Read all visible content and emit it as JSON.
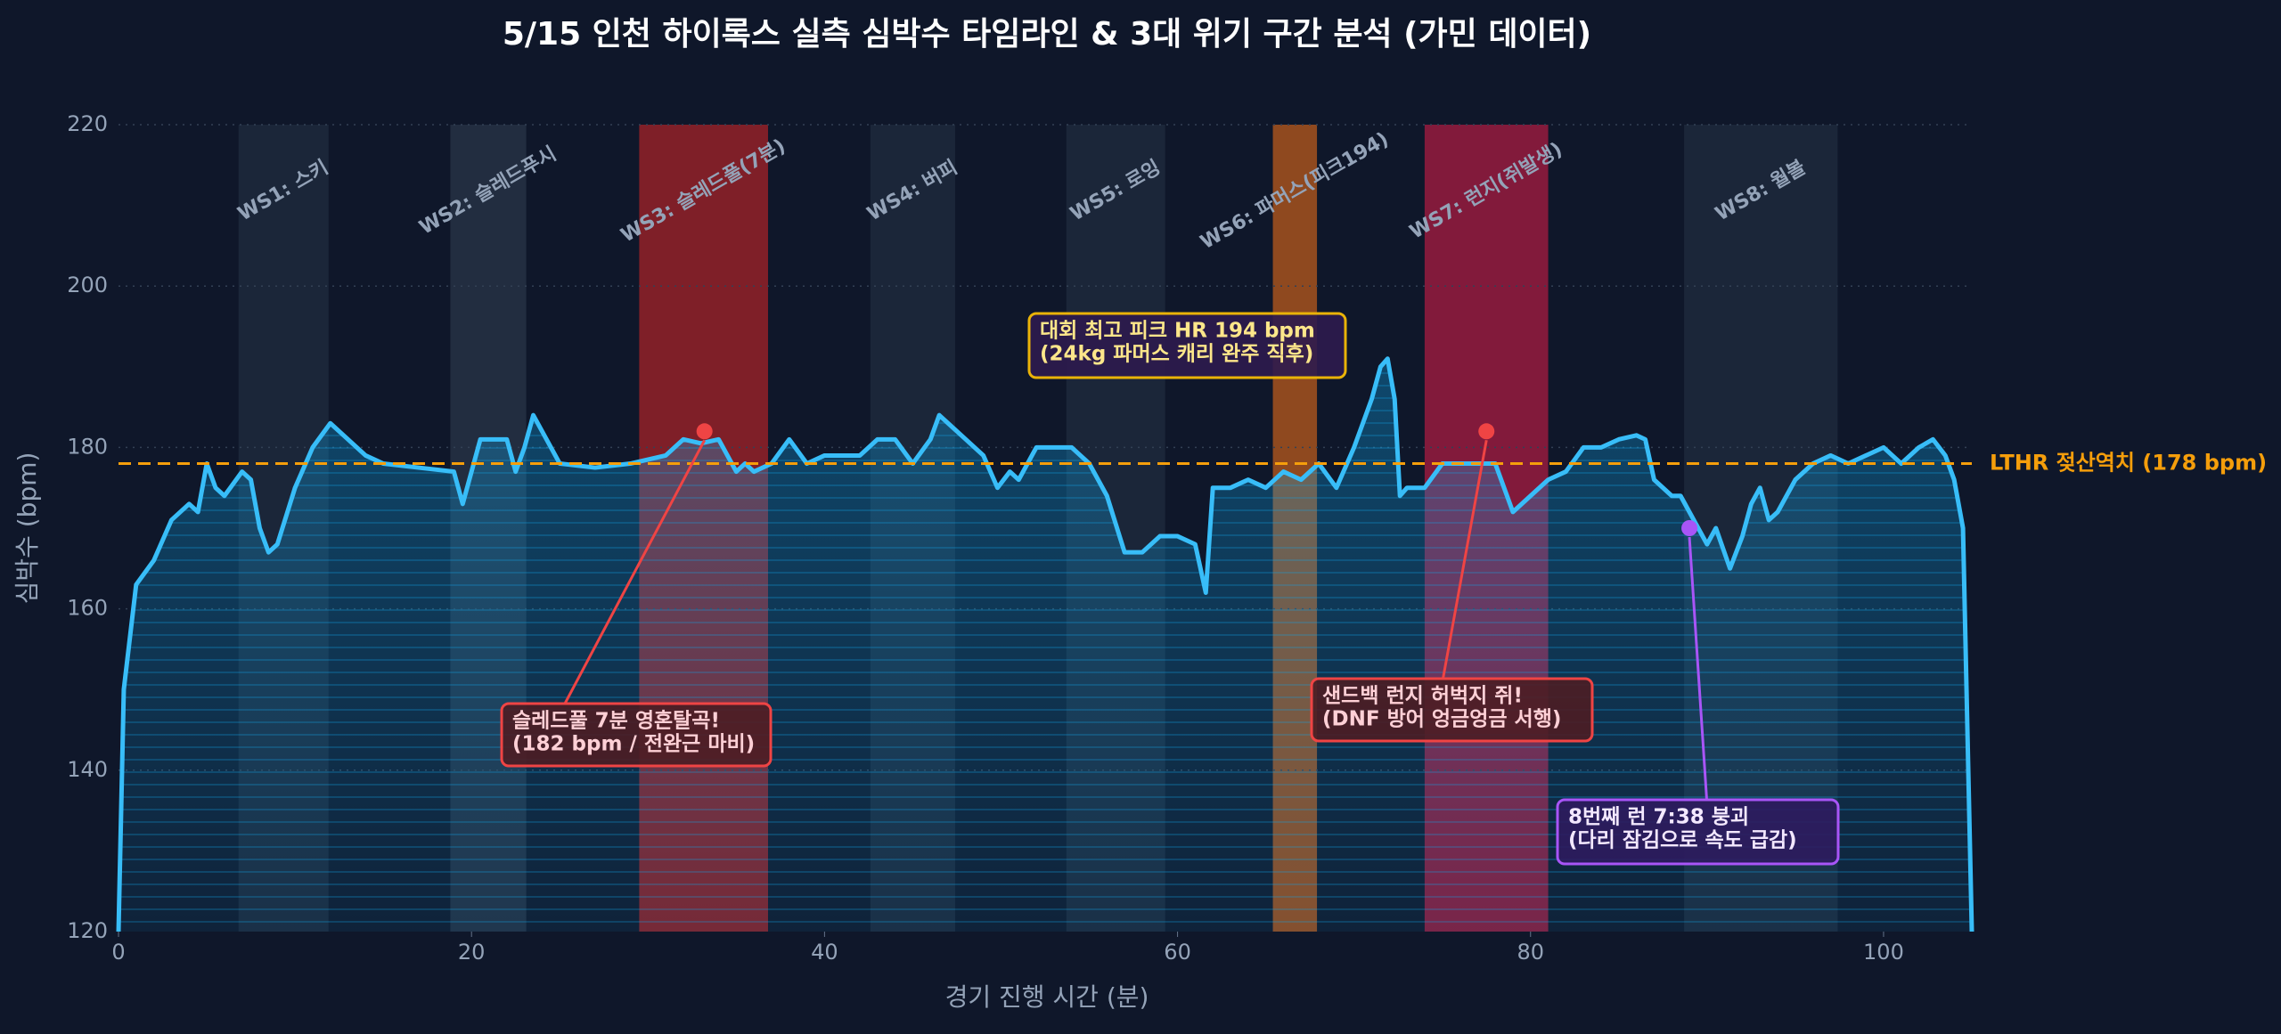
{
  "chart_data": {
    "type": "line",
    "title": "5/15 인천 하이록스 실측 심박수 타임라인 & 3대 위기 구간 분석 (가민 데이터)",
    "xlabel": "경기 진행 시간 (분)",
    "ylabel": "심박수 (bpm)",
    "xlim": [
      0,
      105
    ],
    "ylim": [
      120,
      220
    ],
    "xticks": [
      0,
      20,
      40,
      60,
      80,
      100
    ],
    "yticks": [
      120,
      140,
      160,
      180,
      200,
      220
    ],
    "grid": true,
    "series": [
      {
        "name": "심박수",
        "color": "#38bdf8",
        "x": [
          0,
          0.3,
          1,
          2,
          3,
          4,
          4.5,
          5,
          5.5,
          6,
          7,
          7.5,
          8,
          8.5,
          9,
          10,
          11,
          12,
          13,
          14,
          15,
          17,
          19,
          19.5,
          20,
          20.5,
          21,
          22,
          22.5,
          23,
          23.5,
          24,
          25,
          27,
          29,
          31,
          32,
          33,
          34,
          35,
          35.5,
          36,
          37,
          38,
          39,
          40,
          42,
          43,
          44,
          45,
          46,
          46.5,
          47,
          48,
          49,
          49.8,
          50.5,
          51,
          52,
          53,
          54,
          55,
          56,
          57,
          58,
          59,
          60,
          61,
          61.6,
          62,
          63,
          64,
          65,
          66,
          67,
          68,
          69,
          70,
          71,
          71.5,
          71.9,
          72.3,
          72.6,
          73,
          74,
          75,
          76,
          77,
          78,
          79,
          80,
          81,
          82,
          83,
          84,
          85,
          86,
          86.5,
          87,
          88,
          88.5,
          89,
          90,
          90.5,
          91.3,
          92,
          92.5,
          93,
          93.5,
          94,
          95,
          96,
          97,
          98,
          99,
          100,
          101,
          102,
          102.8,
          103.5,
          104,
          104.5,
          105
        ],
        "values": [
          120,
          150,
          163,
          166,
          171,
          173,
          172,
          178,
          175,
          174,
          177,
          176,
          170,
          167,
          168,
          175,
          180,
          183,
          181,
          179,
          178,
          177.5,
          177,
          173,
          177,
          181,
          181,
          181,
          177,
          180,
          184,
          182,
          178,
          177.5,
          178,
          179,
          181,
          180.5,
          181,
          177,
          178,
          177,
          178,
          181,
          178,
          179,
          179,
          181,
          181,
          178,
          181,
          184,
          183,
          181,
          179,
          175,
          177,
          176,
          180,
          180,
          180,
          178,
          174,
          167,
          167,
          169,
          169,
          168,
          162,
          175,
          175,
          176,
          175,
          177,
          176,
          178,
          175,
          180,
          186,
          190,
          191,
          186,
          174,
          175,
          175,
          178,
          178,
          178,
          178,
          172,
          174,
          176,
          177,
          180,
          180,
          181,
          181.5,
          181,
          176,
          174,
          174,
          172,
          168,
          170,
          165,
          169,
          173,
          175,
          171,
          172,
          176,
          178,
          179,
          178,
          179,
          180,
          178,
          180,
          181,
          179,
          176,
          170,
          120
        ]
      }
    ],
    "spans": [
      {
        "label": "WS1: 스키",
        "x": [
          6.8,
          11.9
        ],
        "color": "#334155"
      },
      {
        "label": "WS2: 슬레드푸시",
        "x": [
          18.8,
          23.1
        ],
        "color": "#475569"
      },
      {
        "label": "WS3: 슬레드풀(7분)",
        "x": [
          29.5,
          36.8
        ],
        "color": "#dc2626"
      },
      {
        "label": "WS4: 버피",
        "x": [
          42.6,
          47.4
        ],
        "color": "#334155"
      },
      {
        "label": "WS5: 로잉",
        "x": [
          53.7,
          59.3
        ],
        "color": "#334155"
      },
      {
        "label": "WS6: 파머스(피크194)",
        "x": [
          65.4,
          67.9
        ],
        "color": "#f97316"
      },
      {
        "label": "WS7: 런지(쥐발생)",
        "x": [
          74,
          81
        ],
        "color": "#e11d48"
      },
      {
        "label": "WS8: 월볼",
        "x": [
          88.7,
          97.4
        ],
        "color": "#334155"
      }
    ],
    "threshold": {
      "label": "LTHR 젖산역치 (178 bpm)",
      "value": 178,
      "color": "#f59e0b"
    },
    "annotations": [
      {
        "lines": [
          "슬레드풀 7분 영혼탈곡!",
          "(182 bpm / 전완근 마비)"
        ],
        "xy": [
          33.2,
          182
        ],
        "color": "#ef4444"
      },
      {
        "lines": [
          "대회 최고 피크 HR 194 bpm",
          "(24kg 파머스 캐리 완주 직후)"
        ],
        "color": "#eab308"
      },
      {
        "lines": [
          "샌드백 런지 허벅지 쥐!",
          "(DNF 방어 엉금엉금 서행)"
        ],
        "xy": [
          77.5,
          182
        ],
        "color": "#ef4444"
      },
      {
        "lines": [
          "8번째 런 7:38 붕괴",
          "(다리 잠김으로 속도 급감)"
        ],
        "xy": [
          89,
          170
        ],
        "color": "#a855f7"
      }
    ]
  }
}
